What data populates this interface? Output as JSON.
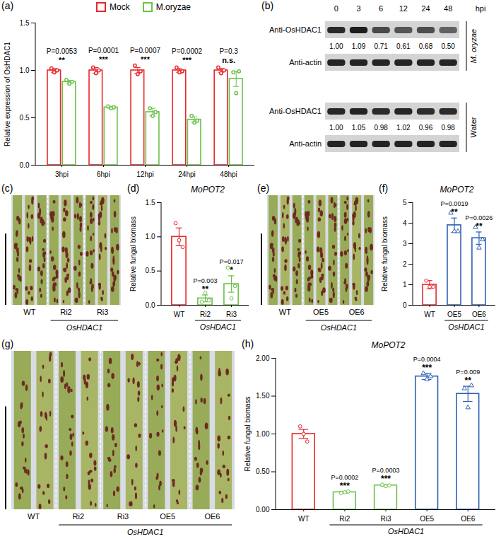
{
  "chart_data": [
    {
      "panel": "(a)",
      "type": "bar",
      "ylabel": "Relative expression of OsHDAC1",
      "categories": [
        "3hpi",
        "6hpi",
        "12hpi",
        "24hpi",
        "48hpi"
      ],
      "series": [
        {
          "name": "Mock",
          "color": "#e8272b",
          "marker": "circle",
          "values": [
            1.0,
            1.0,
            1.0,
            1.0,
            1.0
          ],
          "errors": [
            0.02,
            0.03,
            0.03,
            0.02,
            0.02
          ],
          "points": [
            [
              1.02,
              0.98,
              1.0
            ],
            [
              1.03,
              0.97,
              1.0
            ],
            [
              1.05,
              0.96,
              0.99
            ],
            [
              1.03,
              0.98,
              0.99
            ],
            [
              1.03,
              0.97,
              1.0
            ]
          ]
        },
        {
          "name": "M.oryzae",
          "color": "#6cc24a",
          "marker": "circle",
          "values": [
            0.88,
            0.61,
            0.56,
            0.48,
            0.91
          ],
          "errors": [
            0.013,
            0.01,
            0.04,
            0.03,
            0.08
          ],
          "points": [
            [
              0.9,
              0.86,
              0.88
            ],
            [
              0.62,
              0.6,
              0.61
            ],
            [
              0.6,
              0.52,
              0.56
            ],
            [
              0.52,
              0.45,
              0.47
            ],
            [
              0.98,
              0.76,
              0.99
            ]
          ]
        }
      ],
      "annotations": [
        {
          "category": "3hpi",
          "text": "P=0.0053",
          "stars": "**"
        },
        {
          "category": "6hpi",
          "text": "P=0.0001",
          "stars": "***"
        },
        {
          "category": "12hpi",
          "text": "P=0.0007",
          "stars": "***"
        },
        {
          "category": "24hpi",
          "text": "P=0.0002",
          "stars": "***"
        },
        {
          "category": "48hpi",
          "text": "P=0.3",
          "stars": "n.s."
        }
      ],
      "ylim": [
        0,
        1.5
      ],
      "yticks": [
        {
          "value": 0,
          "label": "0.0"
        },
        {
          "value": 0.5,
          "label": "0.5"
        },
        {
          "value": 1,
          "label": "1.0"
        },
        {
          "value": 1.5,
          "label": "1.5"
        }
      ],
      "legend": "top"
    },
    {
      "panel": "(d)",
      "type": "bar",
      "title": "MoPOT2",
      "ylabel": "Relative fungal biomass",
      "categories": [
        "WT",
        "Ri2",
        "Ri3"
      ],
      "values": [
        1.0,
        0.1,
        0.31
      ],
      "errors": [
        0.13,
        0.05,
        0.12
      ],
      "points": [
        [
          1.2,
          0.95,
          0.85
        ],
        [
          0.05,
          0.18,
          0.07
        ],
        [
          0.55,
          0.1,
          0.28
        ]
      ],
      "colors": [
        "#e8272b",
        "#6cc24a",
        "#6cc24a"
      ],
      "markers": [
        "circle",
        "circle",
        "circle"
      ],
      "group": {
        "label": "OsHDAC1",
        "categories": [
          "Ri2",
          "Ri3"
        ]
      },
      "annotations": [
        {
          "category": "Ri2",
          "text": "P=0.003",
          "stars": "**"
        },
        {
          "category": "Ri3",
          "text": "P=0.017",
          "stars": "*"
        }
      ],
      "ylim": [
        0,
        1.5
      ],
      "yticks": [
        {
          "value": 0,
          "label": "0.0"
        },
        {
          "value": 0.5,
          "label": "0.5"
        },
        {
          "value": 1,
          "label": "1.0"
        },
        {
          "value": 1.5,
          "label": "1.5"
        }
      ]
    },
    {
      "panel": "(f)",
      "type": "bar",
      "title": "MoPOT2",
      "ylabel": "Relative fungal biomass",
      "categories": [
        "WT",
        "OE5",
        "OE6"
      ],
      "values": [
        1.0,
        3.9,
        3.27
      ],
      "errors": [
        0.2,
        0.35,
        0.3
      ],
      "points": [
        [
          1.2,
          0.9,
          0.9
        ],
        [
          4.5,
          3.6,
          3.6
        ],
        [
          3.8,
          2.8,
          3.2
        ]
      ],
      "colors": [
        "#e8272b",
        "#2e5fb4",
        "#2e5fb4"
      ],
      "markers": [
        "circle",
        "triangle",
        "triangle"
      ],
      "group": {
        "label": "OsHDAC1",
        "categories": [
          "OE5",
          "OE6"
        ]
      },
      "annotations": [
        {
          "category": "OE5",
          "text": "P=0.0019",
          "stars": "**"
        },
        {
          "category": "OE6",
          "text": "P=0.0026",
          "stars": "**"
        }
      ],
      "ylim": [
        0,
        5
      ],
      "yticks": [
        0,
        1,
        2,
        3,
        4,
        5
      ]
    },
    {
      "panel": "(h)",
      "type": "bar",
      "title": "MoPOT2",
      "ylabel": "Relative fungal biomass",
      "categories": [
        "WT",
        "Ri2",
        "Ri3",
        "OE5",
        "OE6"
      ],
      "values": [
        1.0,
        0.23,
        0.32,
        1.76,
        1.53
      ],
      "errors": [
        0.06,
        0.01,
        0.01,
        0.04,
        0.1
      ],
      "points": [
        [
          1.1,
          1.0,
          0.9
        ],
        [
          0.22,
          0.23,
          0.24
        ],
        [
          0.33,
          0.31,
          0.32
        ],
        [
          1.8,
          1.72,
          1.76
        ],
        [
          1.6,
          1.35,
          1.64
        ]
      ],
      "colors": [
        "#e8272b",
        "#6cc24a",
        "#6cc24a",
        "#2e5fb4",
        "#2e5fb4"
      ],
      "markers": [
        "circle",
        "circle",
        "circle",
        "triangle",
        "triangle"
      ],
      "group": {
        "label": "OsHDAC1",
        "categories": [
          "Ri2",
          "Ri3",
          "OE5",
          "OE6"
        ]
      },
      "annotations": [
        {
          "category": "Ri2",
          "text": "P=0.0002",
          "stars": "***"
        },
        {
          "category": "Ri3",
          "text": "P=0.0003",
          "stars": "***"
        },
        {
          "category": "OE5",
          "text": "P=0.0004",
          "stars": "***"
        },
        {
          "category": "OE6",
          "text": "P=0.009",
          "stars": "**"
        }
      ],
      "ylim": [
        0,
        2
      ],
      "yticks": [
        {
          "value": 0,
          "label": "0.00"
        },
        {
          "value": 0.5,
          "label": "0.50"
        },
        {
          "value": 1,
          "label": "1.00"
        },
        {
          "value": 1.5,
          "label": "1.50"
        },
        {
          "value": 2,
          "label": "2.00"
        }
      ]
    }
  ],
  "blot": {
    "panel": "(b)",
    "unit": "hpi",
    "times": [
      0,
      3,
      6,
      12,
      24,
      48
    ],
    "blocks": [
      {
        "treatment": "M. oryzae",
        "target": "Anti-OsHDAC1",
        "loading": "Anti-actin",
        "quant": [
          "1.00",
          "1.09",
          "0.71",
          "0.61",
          "0.68",
          "0.50"
        ]
      },
      {
        "treatment": "Water",
        "target": "Anti-OsHDAC1",
        "loading": "Anti-actin",
        "quant": [
          "1.00",
          "1.05",
          "0.98",
          "1.02",
          "0.96",
          "0.98"
        ]
      }
    ]
  },
  "photos": [
    {
      "panel": "(c)",
      "labels": [
        "WT",
        "Ri2",
        "Ri3"
      ],
      "group": {
        "label": "OsHDAC1",
        "categories": [
          "Ri2",
          "Ri3"
        ]
      }
    },
    {
      "panel": "(e)",
      "labels": [
        "WT",
        "OE5",
        "OE6"
      ],
      "group": {
        "label": "OsHDAC1",
        "categories": [
          "OE5",
          "OE6"
        ]
      }
    },
    {
      "panel": "(g)",
      "labels": [
        "WT",
        "Ri2",
        "Ri3",
        "OE5",
        "OE6"
      ],
      "group": {
        "label": "OsHDAC1",
        "categories": [
          "Ri2",
          "Ri3",
          "OE5",
          "OE6"
        ]
      }
    }
  ]
}
